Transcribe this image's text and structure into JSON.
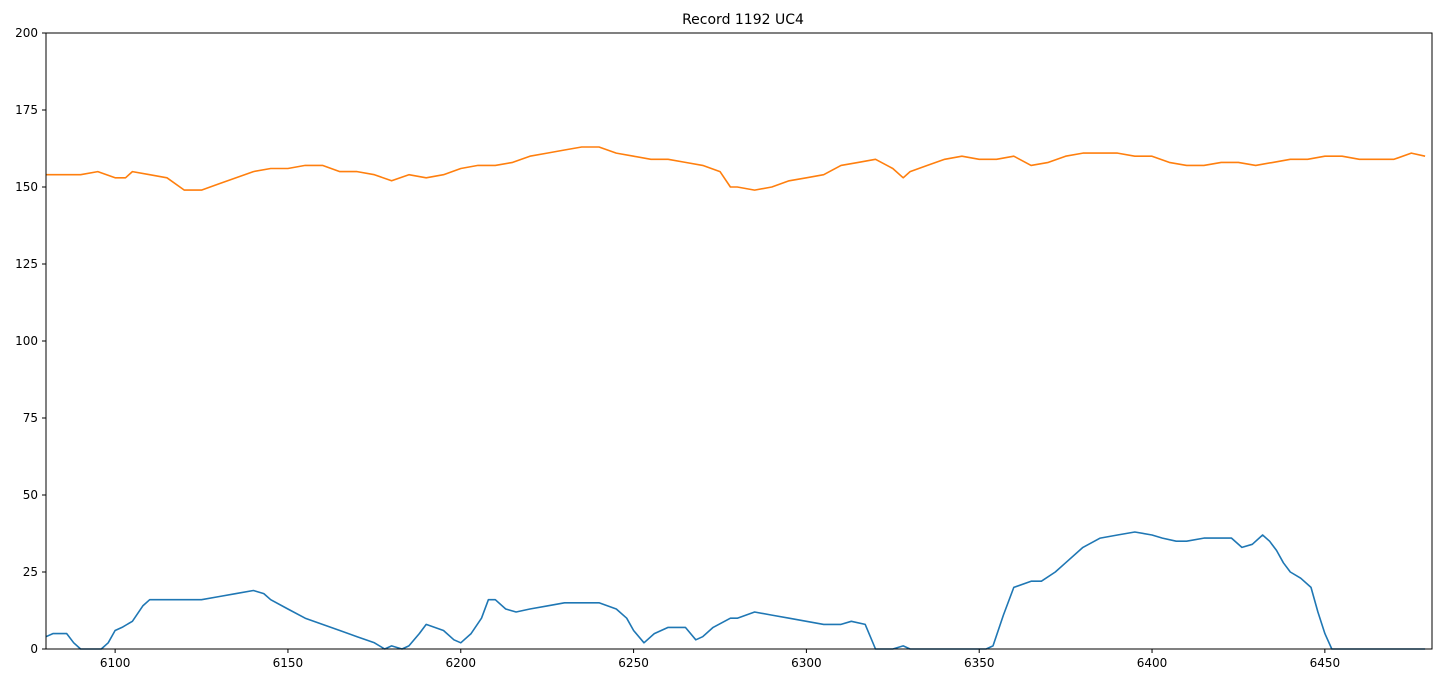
{
  "chart_data": {
    "type": "line",
    "title": "Record 1192 UC4",
    "xlabel": "",
    "ylabel": "",
    "xlim": [
      6080,
      6481
    ],
    "ylim": [
      0,
      200
    ],
    "x_ticks": [
      6100,
      6150,
      6200,
      6250,
      6300,
      6350,
      6400,
      6450
    ],
    "y_ticks": [
      0,
      25,
      50,
      75,
      100,
      125,
      150,
      175,
      200
    ],
    "grid": false,
    "legend": "none",
    "series": [
      {
        "color": "#ff7f0e",
        "x": [
          6080,
          6085,
          6090,
          6095,
          6100,
          6103,
          6105,
          6110,
          6115,
          6120,
          6125,
          6130,
          6135,
          6140,
          6145,
          6150,
          6155,
          6160,
          6165,
          6170,
          6175,
          6180,
          6185,
          6190,
          6195,
          6200,
          6205,
          6210,
          6215,
          6220,
          6225,
          6230,
          6235,
          6240,
          6245,
          6250,
          6255,
          6260,
          6265,
          6270,
          6275,
          6278,
          6280,
          6285,
          6290,
          6295,
          6300,
          6305,
          6310,
          6315,
          6320,
          6325,
          6328,
          6330,
          6335,
          6340,
          6345,
          6350,
          6355,
          6360,
          6365,
          6370,
          6375,
          6380,
          6385,
          6390,
          6395,
          6400,
          6405,
          6410,
          6415,
          6420,
          6425,
          6430,
          6435,
          6440,
          6445,
          6450,
          6455,
          6460,
          6465,
          6470,
          6475,
          6479
        ],
        "values": [
          154,
          154,
          154,
          155,
          153,
          153,
          155,
          154,
          153,
          149,
          149,
          151,
          153,
          155,
          156,
          156,
          157,
          157,
          155,
          155,
          154,
          152,
          154,
          153,
          154,
          156,
          157,
          157,
          158,
          160,
          161,
          162,
          163,
          163,
          161,
          160,
          159,
          159,
          158,
          157,
          155,
          150,
          150,
          149,
          150,
          152,
          153,
          154,
          157,
          158,
          159,
          156,
          153,
          155,
          157,
          159,
          160,
          159,
          159,
          160,
          157,
          158,
          160,
          161,
          161,
          161,
          160,
          160,
          158,
          157,
          157,
          158,
          158,
          157,
          158,
          159,
          159,
          160,
          160,
          159,
          159,
          159,
          161,
          160
        ]
      },
      {
        "color": "#1f77b4",
        "x": [
          6080,
          6082,
          6086,
          6088,
          6090,
          6094,
          6096,
          6098,
          6100,
          6102,
          6105,
          6108,
          6110,
          6115,
          6120,
          6125,
          6130,
          6135,
          6140,
          6143,
          6145,
          6150,
          6155,
          6160,
          6165,
          6170,
          6175,
          6178,
          6180,
          6183,
          6185,
          6188,
          6190,
          6195,
          6198,
          6200,
          6203,
          6206,
          6208,
          6210,
          6213,
          6216,
          6220,
          6225,
          6230,
          6235,
          6240,
          6245,
          6248,
          6250,
          6253,
          6256,
          6260,
          6265,
          6268,
          6270,
          6273,
          6278,
          6280,
          6285,
          6290,
          6295,
          6300,
          6305,
          6310,
          6313,
          6317,
          6320,
          6325,
          6328,
          6330,
          6335,
          6340,
          6345,
          6350,
          6352,
          6354,
          6357,
          6360,
          6365,
          6368,
          6372,
          6375,
          6380,
          6385,
          6390,
          6395,
          6400,
          6403,
          6407,
          6410,
          6415,
          6420,
          6423,
          6426,
          6429,
          6432,
          6434,
          6436,
          6438,
          6440,
          6443,
          6446,
          6448,
          6450,
          6452,
          6455,
          6460,
          6465,
          6470,
          6475,
          6479
        ],
        "values": [
          4,
          5,
          5,
          2,
          0,
          0,
          0,
          2,
          6,
          7,
          9,
          14,
          16,
          16,
          16,
          16,
          17,
          18,
          19,
          18,
          16,
          13,
          10,
          8,
          6,
          4,
          2,
          0,
          1,
          0,
          1,
          5,
          8,
          6,
          3,
          2,
          5,
          10,
          16,
          16,
          13,
          12,
          13,
          14,
          15,
          15,
          15,
          13,
          10,
          6,
          2,
          5,
          7,
          7,
          3,
          4,
          7,
          10,
          10,
          12,
          11,
          10,
          9,
          8,
          8,
          9,
          8,
          0,
          0,
          1,
          0,
          0,
          0,
          0,
          0,
          0,
          1,
          11,
          20,
          22,
          22,
          25,
          28,
          33,
          36,
          37,
          38,
          37,
          36,
          35,
          35,
          36,
          36,
          36,
          33,
          34,
          37,
          35,
          32,
          28,
          25,
          23,
          20,
          12,
          5,
          0,
          0,
          0,
          0,
          0,
          0,
          0
        ]
      }
    ]
  }
}
